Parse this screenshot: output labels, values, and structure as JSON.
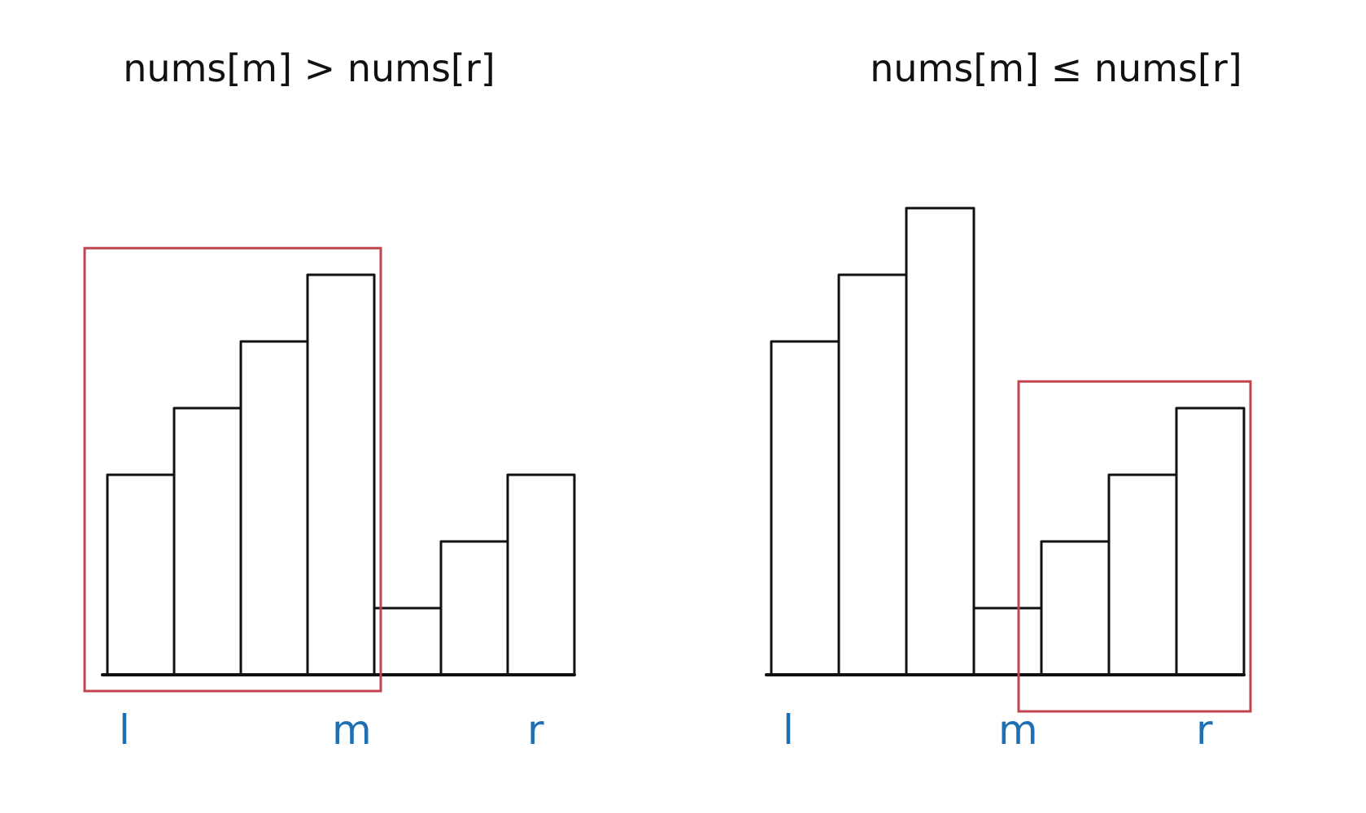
{
  "colors": {
    "ink": "#111111",
    "index_label": "#1f6fb5",
    "highlight": "#c0444e",
    "background": "#ffffff"
  },
  "panels": [
    {
      "id": "left",
      "caption": "nums[m] > nums[r]",
      "bars": [
        3,
        4,
        5,
        6,
        1,
        2,
        3
      ],
      "highlight": {
        "from": 0,
        "to": 3
      },
      "markers": [
        {
          "label": "l",
          "index": 0
        },
        {
          "label": "m",
          "index": 3
        },
        {
          "label": "r",
          "index": 6
        }
      ]
    },
    {
      "id": "right",
      "caption": "nums[m] ≤ nums[r]",
      "bars": [
        5,
        6,
        7,
        1,
        2,
        3,
        4
      ],
      "highlight": {
        "from": 4,
        "to": 6
      },
      "markers": [
        {
          "label": "l",
          "index": 0
        },
        {
          "label": "m",
          "index": 3
        },
        {
          "label": "r",
          "index": 6
        }
      ]
    }
  ]
}
